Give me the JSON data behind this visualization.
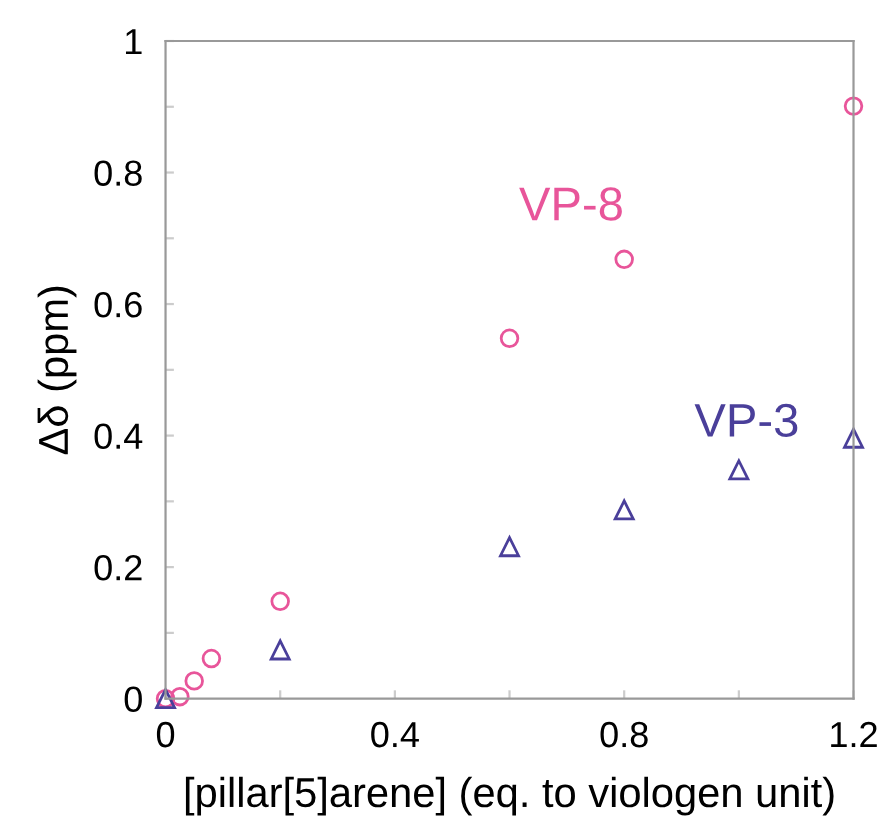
{
  "chart_data": {
    "type": "scatter",
    "xlabel": "[pillar[5]arene] (eq. to viologen unit)",
    "ylabel": "Δδ (ppm)",
    "xlim": [
      0,
      1.2
    ],
    "ylim": [
      0,
      1
    ],
    "xticks": [
      0,
      {
        "value": 0.2,
        "label": null
      },
      0.4,
      {
        "value": 0.6,
        "label": null
      },
      0.8,
      {
        "value": 1.0,
        "label": null
      },
      1.2
    ],
    "yticks": [
      0,
      {
        "value": 0.1,
        "label": null
      },
      0.2,
      {
        "value": 0.3,
        "label": null
      },
      0.4,
      {
        "value": 0.5,
        "label": null
      },
      0.6,
      {
        "value": 0.7,
        "label": null
      },
      0.8,
      {
        "value": 0.9,
        "label": null
      },
      1
    ],
    "grid": false,
    "legend": false,
    "series": [
      {
        "name": "VP-8",
        "color": "#e8559a",
        "marker": "circle",
        "x": [
          0,
          0.025,
          0.05,
          0.08,
          0.2,
          0.6,
          0.8,
          1.2
        ],
        "values": [
          0,
          0.003,
          0.027,
          0.061,
          0.148,
          0.548,
          0.668,
          0.901
        ]
      },
      {
        "name": "VP-3",
        "color": "#4a3f9a",
        "marker": "triangle",
        "x": [
          0,
          0.2,
          0.6,
          0.8,
          1.0,
          1.2
        ],
        "values": [
          0,
          0.074,
          0.231,
          0.287,
          0.348,
          0.396
        ]
      }
    ]
  }
}
